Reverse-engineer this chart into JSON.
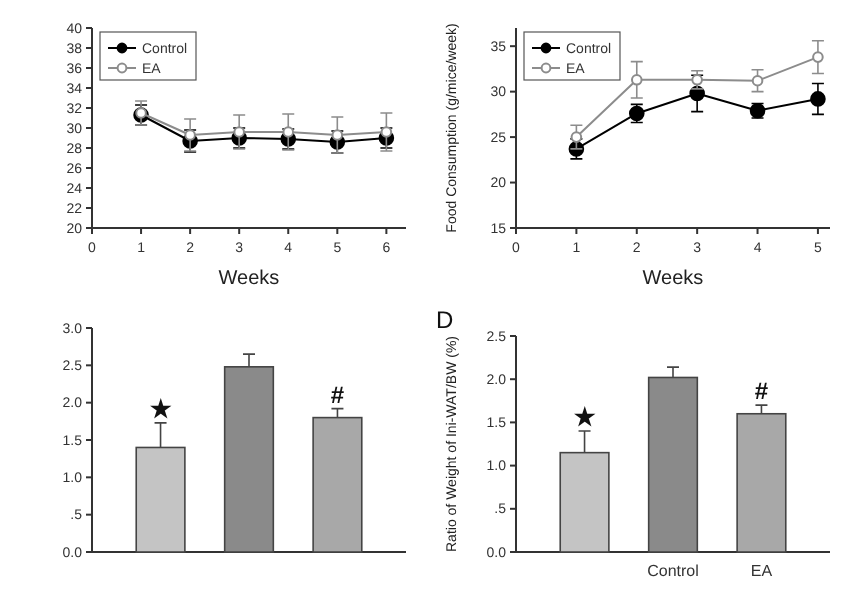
{
  "chart_data": [
    {
      "type": "line",
      "xlabel": "Weeks",
      "x": [
        1,
        2,
        3,
        4,
        5,
        6
      ],
      "xlim": [
        0,
        6.4
      ],
      "xticks": [
        0,
        1,
        2,
        3,
        4,
        5,
        6
      ],
      "ylim": [
        20,
        40
      ],
      "yticks": [
        20,
        22,
        24,
        26,
        28,
        30,
        32,
        34,
        36,
        38,
        40
      ],
      "marker": "circle",
      "legend": "top left",
      "series": [
        {
          "name": "Control",
          "color": "#000000",
          "values": [
            31.3,
            28.7,
            29.0,
            28.9,
            28.6,
            29.0
          ],
          "errors": [
            1.0,
            1.1,
            1.0,
            1.0,
            1.1,
            1.0
          ]
        },
        {
          "name": "EA",
          "color": "#8c8c8c",
          "values": [
            31.5,
            29.3,
            29.6,
            29.6,
            29.3,
            29.6
          ],
          "errors": [
            1.2,
            1.6,
            1.7,
            1.8,
            1.8,
            1.9
          ]
        }
      ]
    },
    {
      "type": "line",
      "xlabel": "Weeks",
      "ylabel": "Food Consumption (g/mice/week)",
      "x": [
        1,
        2,
        3,
        4,
        5
      ],
      "xlim": [
        0,
        5.2
      ],
      "xticks": [
        0,
        1,
        2,
        3,
        4,
        5
      ],
      "ylim": [
        15,
        37
      ],
      "yticks": [
        15,
        20,
        25,
        30,
        35
      ],
      "marker": "circle",
      "legend": "top left",
      "series": [
        {
          "name": "Control",
          "color": "#000000",
          "values": [
            23.7,
            27.6,
            29.8,
            27.9,
            29.2
          ],
          "errors": [
            1.1,
            1.0,
            2.0,
            0.8,
            1.7
          ]
        },
        {
          "name": "EA",
          "color": "#8c8c8c",
          "values": [
            25.0,
            31.3,
            31.3,
            31.2,
            33.8
          ],
          "errors": [
            1.3,
            2.0,
            1.0,
            1.2,
            1.8
          ]
        }
      ]
    },
    {
      "type": "bar",
      "categories": [
        null,
        null,
        null
      ],
      "values": [
        1.4,
        2.48,
        1.8
      ],
      "errors": [
        0.33,
        0.17,
        0.12
      ],
      "colors": [
        "#c4c4c4",
        "#8a8a8a",
        "#a8a8a8"
      ],
      "ylim": [
        0,
        3.0
      ],
      "yticks": [
        {
          "value": 0,
          "label": "0.0"
        },
        {
          "value": 0.5,
          "label": ".5"
        },
        {
          "value": 1,
          "label": "1.0"
        },
        {
          "value": 1.5,
          "label": "1.5"
        },
        {
          "value": 2,
          "label": "2.0"
        },
        {
          "value": 2.5,
          "label": "2.5"
        },
        {
          "value": 3,
          "label": "3.0"
        }
      ],
      "value_labels": [
        "★",
        null,
        "#"
      ]
    },
    {
      "type": "bar",
      "title": "D",
      "ylabel": "Ratio of Weight of Ini-WAT/BW (%)",
      "categories": [
        null,
        "Control",
        "EA"
      ],
      "values": [
        1.15,
        2.02,
        1.6
      ],
      "errors": [
        0.25,
        0.12,
        0.1
      ],
      "colors": [
        "#c4c4c4",
        "#8a8a8a",
        "#a8a8a8"
      ],
      "ylim": [
        0,
        2.5
      ],
      "yticks": [
        {
          "value": 0,
          "label": "0.0"
        },
        {
          "value": 0.5,
          "label": ".5"
        },
        {
          "value": 1,
          "label": "1.0"
        },
        {
          "value": 1.5,
          "label": "1.5"
        },
        {
          "value": 2,
          "label": "2.0"
        },
        {
          "value": 2.5,
          "label": "2.5"
        }
      ],
      "value_labels": [
        "★",
        null,
        "#"
      ]
    }
  ]
}
